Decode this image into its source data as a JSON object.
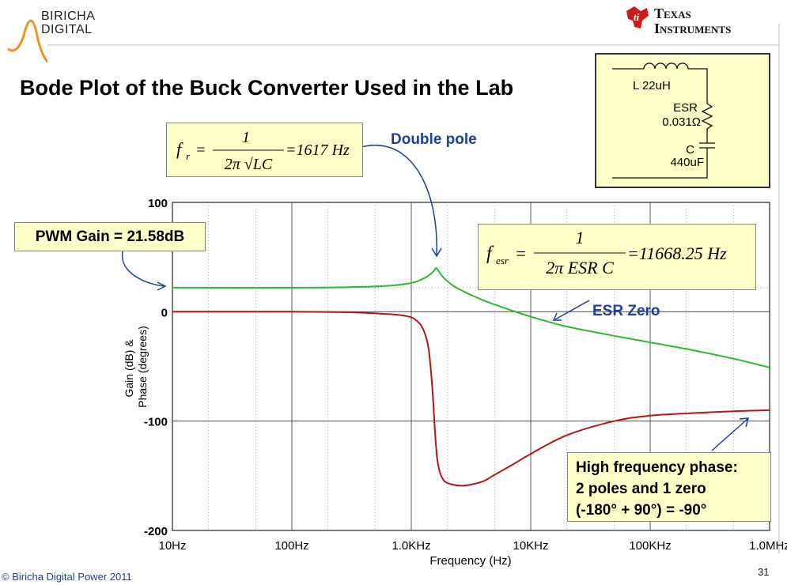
{
  "header": {
    "logo_line1": "BIRICHA",
    "logo_line2": "DIGITAL",
    "ti_line1": "Texas",
    "ti_line2": "Instruments"
  },
  "slide_title": "Bode Plot of the Buck Converter Used in the Lab",
  "formula_fr": {
    "lhs": "f",
    "lhs_sub": "r",
    "numerator": "1",
    "denominator": "2π √LC",
    "result": "=1617 Hz"
  },
  "formula_fesr": {
    "lhs": "f",
    "lhs_sub": "esr",
    "numerator": "1",
    "denominator": "2π ESR C",
    "result": "=11668.25 Hz"
  },
  "annotations": {
    "pwm_gain": "PWM Gain = 21.58dB",
    "double_pole": "Double pole",
    "esr_zero": "ESR Zero",
    "hf_line1": "High frequency phase:",
    "hf_line2": "2 poles and 1 zero",
    "hf_line3": "(-180° + 90°) = -90°"
  },
  "circuit": {
    "inductor_label": "L  22uH",
    "esr_label": "ESR",
    "esr_value": "0.031Ω",
    "cap_label": "C",
    "cap_value": "440uF"
  },
  "footer": {
    "copyright": "© Biricha Digital Power 2011",
    "page_number": "31"
  },
  "colors": {
    "gain": "#2db82d",
    "phase": "#b01818",
    "annotation_blue": "#1f3f9a",
    "box_fill": "#ffffc8"
  },
  "chart_data": {
    "type": "line",
    "title": "",
    "xlabel": "Frequency (Hz)",
    "ylabel": "Gain (dB) & Phase (degrees)",
    "x_scale": "log",
    "xlim": [
      10,
      1000000
    ],
    "ylim": [
      -200,
      100
    ],
    "x_ticks": [
      10,
      100,
      1000,
      10000,
      100000,
      1000000
    ],
    "x_tick_labels": [
      "10Hz",
      "100Hz",
      "1.0KHz",
      "10KHz",
      "100KHz",
      "1.0MHz"
    ],
    "y_ticks": [
      100,
      0,
      -100,
      -200
    ],
    "y_tick_labels": [
      "100",
      "0",
      "-100",
      "-200"
    ],
    "grid": true,
    "series": [
      {
        "color": "#2db82d",
        "x": [
          10,
          100,
          300,
          600,
          900,
          1100,
          1300,
          1450,
          1550,
          1617,
          1700,
          1800,
          2000,
          2300,
          2700,
          3000,
          4000,
          5000,
          7000,
          10000,
          15000,
          20000,
          30000,
          50000,
          100000,
          200000,
          500000,
          1000000
        ],
        "y": [
          22,
          22,
          22.5,
          23.5,
          25.5,
          27.5,
          31,
          34.5,
          37.5,
          40,
          37,
          33,
          28,
          23,
          19,
          16.5,
          10.5,
          6.5,
          1,
          -4.5,
          -10,
          -13.5,
          -17.5,
          -22,
          -28,
          -34,
          -43,
          -51
        ]
      },
      {
        "color": "#b01818",
        "x": [
          10,
          100,
          300,
          600,
          800,
          1000,
          1100,
          1200,
          1300,
          1400,
          1500,
          1580,
          1650,
          1750,
          1900,
          2200,
          2600,
          3000,
          4000,
          5000,
          7000,
          10000,
          20000,
          50000,
          100000,
          200000,
          500000,
          1000000
        ],
        "y": [
          0,
          0,
          -0.5,
          -2,
          -3,
          -5,
          -8,
          -12,
          -20,
          -35,
          -70,
          -110,
          -135,
          -148,
          -155,
          -158,
          -159,
          -158.5,
          -155,
          -149,
          -140,
          -130,
          -113,
          -100,
          -95,
          -93,
          -91,
          -90
        ]
      }
    ]
  }
}
